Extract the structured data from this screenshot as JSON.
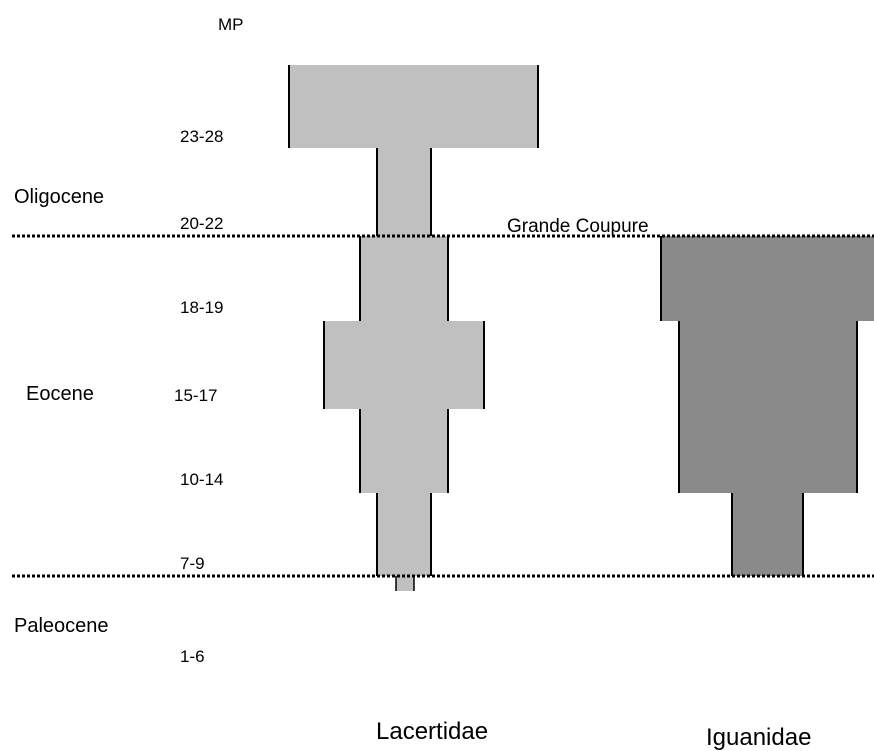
{
  "mp_header": "MP",
  "mp_labels": [
    "23-28",
    "20-22",
    "18-19",
    "15-17",
    "10-14",
    "7-9",
    "1-6"
  ],
  "epochs": [
    "Oligocene",
    "Eocene",
    "Paleocene"
  ],
  "event_label": "Grande Coupure",
  "taxa": [
    "Lacertidae",
    "Iguanidae"
  ],
  "colors": {
    "lacertidae": "#c0c0c0",
    "iguanidae": "#8a8a8a",
    "line": "#000000"
  }
}
